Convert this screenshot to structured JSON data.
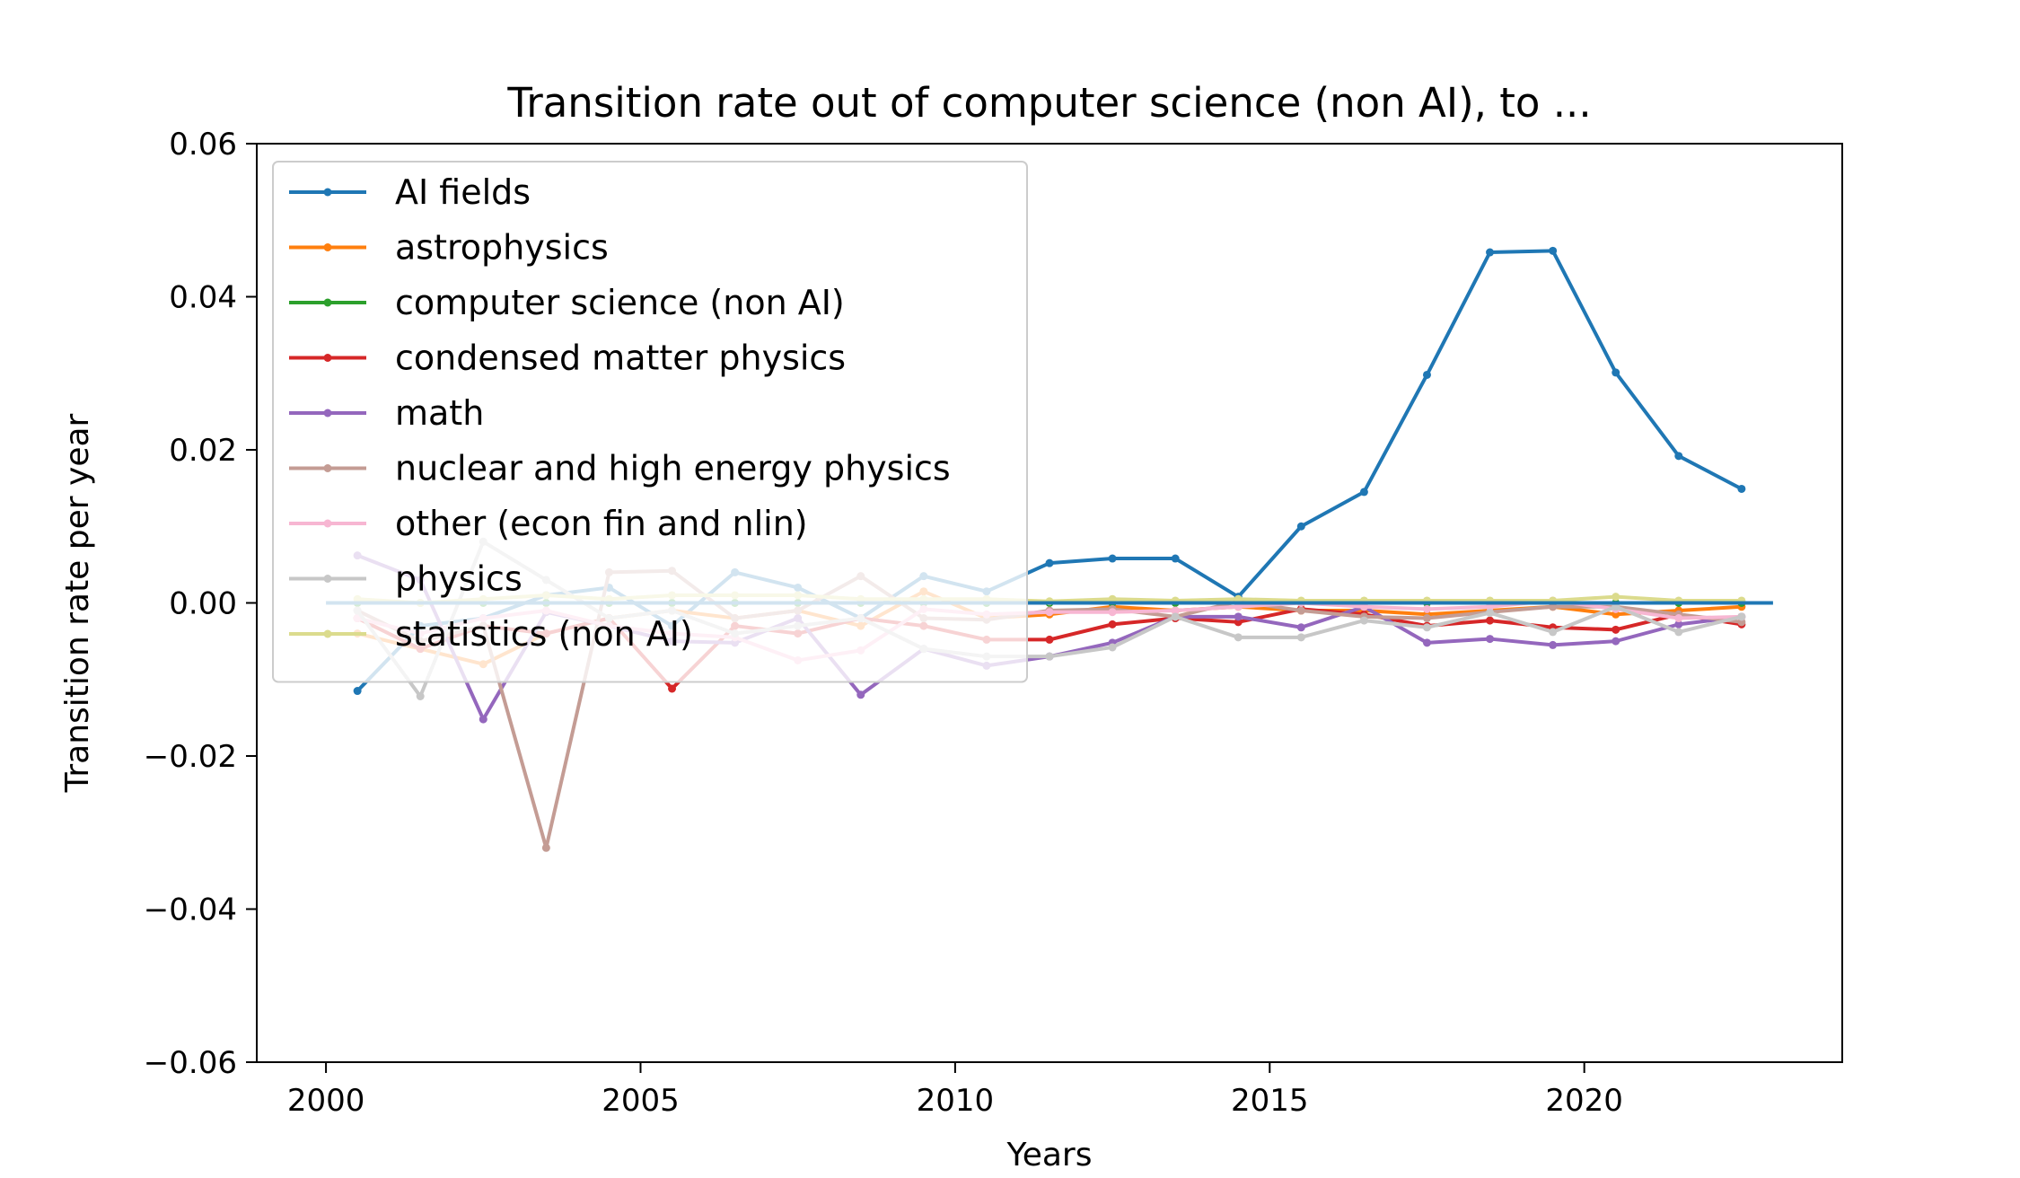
{
  "chart_data": {
    "type": "line",
    "title": "Transition rate out of computer science (non AI), to ...",
    "xlabel": "Years",
    "ylabel": "Transition rate per year",
    "xlim": [
      1998.9,
      2024.1
    ],
    "ylim": [
      -0.06,
      0.06
    ],
    "x_ticks": [
      2000,
      2005,
      2010,
      2015,
      2020
    ],
    "x_tick_labels": [
      "2000",
      "2005",
      "2010",
      "2015",
      "2020"
    ],
    "y_ticks": [
      -0.06,
      -0.04,
      -0.02,
      0.0,
      0.02,
      0.04,
      0.06
    ],
    "y_tick_labels": [
      "−0.06",
      "−0.04",
      "−0.02",
      "0.00",
      "0.02",
      "0.04",
      "0.06"
    ],
    "grid": false,
    "legend_position": "upper-left",
    "x": [
      2000.5,
      2001.5,
      2002.5,
      2003.5,
      2004.5,
      2005.5,
      2006.5,
      2007.5,
      2008.5,
      2009.5,
      2010.5,
      2011.5,
      2012.5,
      2013.5,
      2014.5,
      2015.5,
      2016.5,
      2017.5,
      2018.5,
      2019.5,
      2020.5,
      2021.5,
      2022.5
    ],
    "zero_line": {
      "from": 2000,
      "to": 2023,
      "color": "#1f77b4"
    },
    "series": [
      {
        "name": "AI fields",
        "color": "#1f77b4",
        "values": [
          -0.0115,
          -0.003,
          -0.002,
          0.001,
          0.002,
          -0.003,
          0.004,
          0.002,
          -0.002,
          0.0035,
          0.0015,
          0.0052,
          0.0058,
          0.0058,
          0.0008,
          0.01,
          0.0145,
          0.0298,
          0.0458,
          0.046,
          0.0301,
          0.0192,
          0.0149
        ]
      },
      {
        "name": "astrophysics",
        "color": "#ff7f0e",
        "values": [
          -0.004,
          -0.006,
          -0.008,
          -0.004,
          -0.002,
          -0.001,
          -0.002,
          -0.001,
          -0.003,
          0.0015,
          -0.002,
          -0.0015,
          -0.0005,
          -0.001,
          -0.0005,
          -0.001,
          -0.001,
          -0.0015,
          -0.001,
          -0.0005,
          -0.0015,
          -0.001,
          -0.0005
        ]
      },
      {
        "name": "computer science (non AI)",
        "color": "#2ca02c",
        "values": [
          0.0,
          0.0,
          0.0,
          0.0,
          0.0,
          0.0,
          0.0,
          0.0,
          0.0,
          0.0,
          0.0,
          0.0,
          0.0,
          0.0,
          0.0,
          0.0,
          0.0,
          0.0,
          0.0,
          0.0,
          0.0,
          0.0,
          0.0
        ]
      },
      {
        "name": "condensed matter physics",
        "color": "#d62728",
        "values": [
          -0.002,
          -0.006,
          -0.003,
          -0.004,
          -0.002,
          -0.0112,
          -0.003,
          -0.004,
          -0.002,
          -0.003,
          -0.0048,
          -0.0048,
          -0.0028,
          -0.002,
          -0.0025,
          -0.0008,
          -0.0015,
          -0.003,
          -0.0023,
          -0.0032,
          -0.0035,
          -0.0015,
          -0.0028
        ]
      },
      {
        "name": "math",
        "color": "#9467bd",
        "values": [
          0.0062,
          0.003,
          -0.0152,
          -0.0012,
          -0.003,
          -0.005,
          -0.0052,
          -0.002,
          -0.012,
          -0.006,
          -0.0082,
          -0.007,
          -0.0052,
          -0.0018,
          -0.0018,
          -0.0032,
          -0.0005,
          -0.0052,
          -0.0047,
          -0.0055,
          -0.005,
          -0.0028,
          -0.0018
        ]
      },
      {
        "name": "nuclear and high energy physics",
        "color": "#c49c94",
        "values": [
          -0.001,
          -0.005,
          -0.003,
          -0.032,
          0.004,
          0.0042,
          -0.002,
          -0.001,
          0.0035,
          -0.002,
          -0.0022,
          -0.001,
          -0.0008,
          -0.0018,
          0.0002,
          -0.001,
          -0.0018,
          -0.002,
          -0.0012,
          -0.0005,
          -0.0005,
          -0.0015,
          -0.0025
        ]
      },
      {
        "name": "other (econ fin and nlin)",
        "color": "#f7b6d2",
        "values": [
          -0.002,
          -0.004,
          -0.002,
          -0.001,
          -0.003,
          -0.004,
          -0.0045,
          -0.0075,
          -0.0062,
          -0.0008,
          -0.0015,
          -0.0012,
          -0.0012,
          -0.001,
          -0.0005,
          0.0,
          -0.0005,
          -0.0008,
          -0.0005,
          0.0003,
          -0.0008,
          -0.002,
          -0.0018
        ]
      },
      {
        "name": "physics",
        "color": "#c7c7c7",
        "values": [
          -0.001,
          -0.0122,
          0.008,
          0.003,
          -0.002,
          -0.001,
          -0.004,
          -0.003,
          -0.002,
          -0.006,
          -0.007,
          -0.007,
          -0.0058,
          -0.0018,
          -0.0045,
          -0.0045,
          -0.0023,
          -0.0032,
          -0.0013,
          -0.0038,
          -0.0005,
          -0.0038,
          -0.0018
        ]
      },
      {
        "name": "statistics (non AI)",
        "color": "#dbdb8d",
        "values": [
          0.0005,
          0.0,
          0.0005,
          0.001,
          0.0005,
          0.001,
          0.001,
          0.001,
          0.0005,
          0.0005,
          0.0005,
          0.0002,
          0.0005,
          0.0003,
          0.0005,
          0.0003,
          0.0003,
          0.0003,
          0.0003,
          0.0003,
          0.0008,
          0.0003,
          0.0003
        ]
      }
    ]
  }
}
